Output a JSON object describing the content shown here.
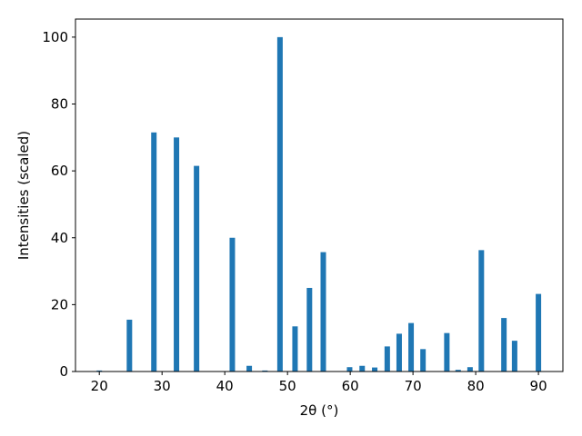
{
  "chart_data": {
    "type": "bar",
    "xlabel": "2θ (°)",
    "ylabel": "Intensities (scaled)",
    "x": [
      20.0,
      24.8,
      28.7,
      32.3,
      35.5,
      41.2,
      43.9,
      46.4,
      48.8,
      51.2,
      53.5,
      55.7,
      59.9,
      61.9,
      63.9,
      65.9,
      67.8,
      69.7,
      71.6,
      75.4,
      77.2,
      79.1,
      80.9,
      84.5,
      86.2,
      90.0
    ],
    "values": [
      0.3,
      15.5,
      71.5,
      70,
      61.5,
      40,
      1.7,
      0.3,
      100,
      13.5,
      25,
      35.7,
      1.3,
      1.7,
      1.2,
      7.5,
      11.3,
      14.5,
      6.7,
      11.5,
      0.5,
      1.3,
      36.3,
      16,
      9.2,
      23.2
    ],
    "color": "#1f77b4",
    "xlim": [
      16.2,
      93.9
    ],
    "xticks": [
      20,
      30,
      40,
      50,
      60,
      70,
      80,
      90
    ],
    "ylim": [
      0,
      105.4
    ],
    "yticks": [
      0,
      20,
      40,
      60,
      80,
      100
    ],
    "grid": false
  }
}
